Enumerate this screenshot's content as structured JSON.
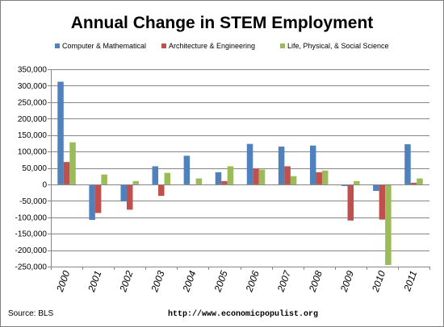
{
  "chart_data": {
    "type": "bar",
    "title": "Annual Change in STEM Employment",
    "categories": [
      "2000",
      "2001",
      "2002",
      "2003",
      "2004",
      "2005",
      "2006",
      "2007",
      "2008",
      "2009",
      "2010",
      "2011"
    ],
    "series": [
      {
        "name": "Computer & Mathematical",
        "color": "#4f81bd",
        "values": [
          312000,
          -108000,
          -52000,
          55000,
          87000,
          37000,
          123000,
          115000,
          118000,
          -5000,
          -20000,
          122000
        ]
      },
      {
        "name": "Architecture & Engineering",
        "color": "#c0504d",
        "values": [
          68000,
          -87000,
          -77000,
          -35000,
          -3000,
          10000,
          48000,
          55000,
          37000,
          -110000,
          -107000,
          5000
        ]
      },
      {
        "name": "Life, Physical, & Social Science",
        "color": "#9bbb59",
        "values": [
          128000,
          30000,
          10000,
          35000,
          18000,
          55000,
          45000,
          25000,
          42000,
          10000,
          -245000,
          18000
        ]
      }
    ],
    "ylim": [
      -250000,
      350000
    ],
    "yticks": [
      350000,
      300000,
      250000,
      200000,
      150000,
      100000,
      50000,
      0,
      -50000,
      -100000,
      -150000,
      -200000,
      -250000
    ],
    "ytick_labels": [
      "350,000",
      "300,000",
      "250,000",
      "200,000",
      "150,000",
      "100,000",
      "50,000",
      "0",
      "-50,000",
      "-100,000",
      "-150,000",
      "-200,000",
      "-250,000"
    ],
    "grid": true,
    "legend_position": "top"
  },
  "footer": {
    "source": "Source:  BLS",
    "url": "http://www.economicpopulist.org"
  }
}
